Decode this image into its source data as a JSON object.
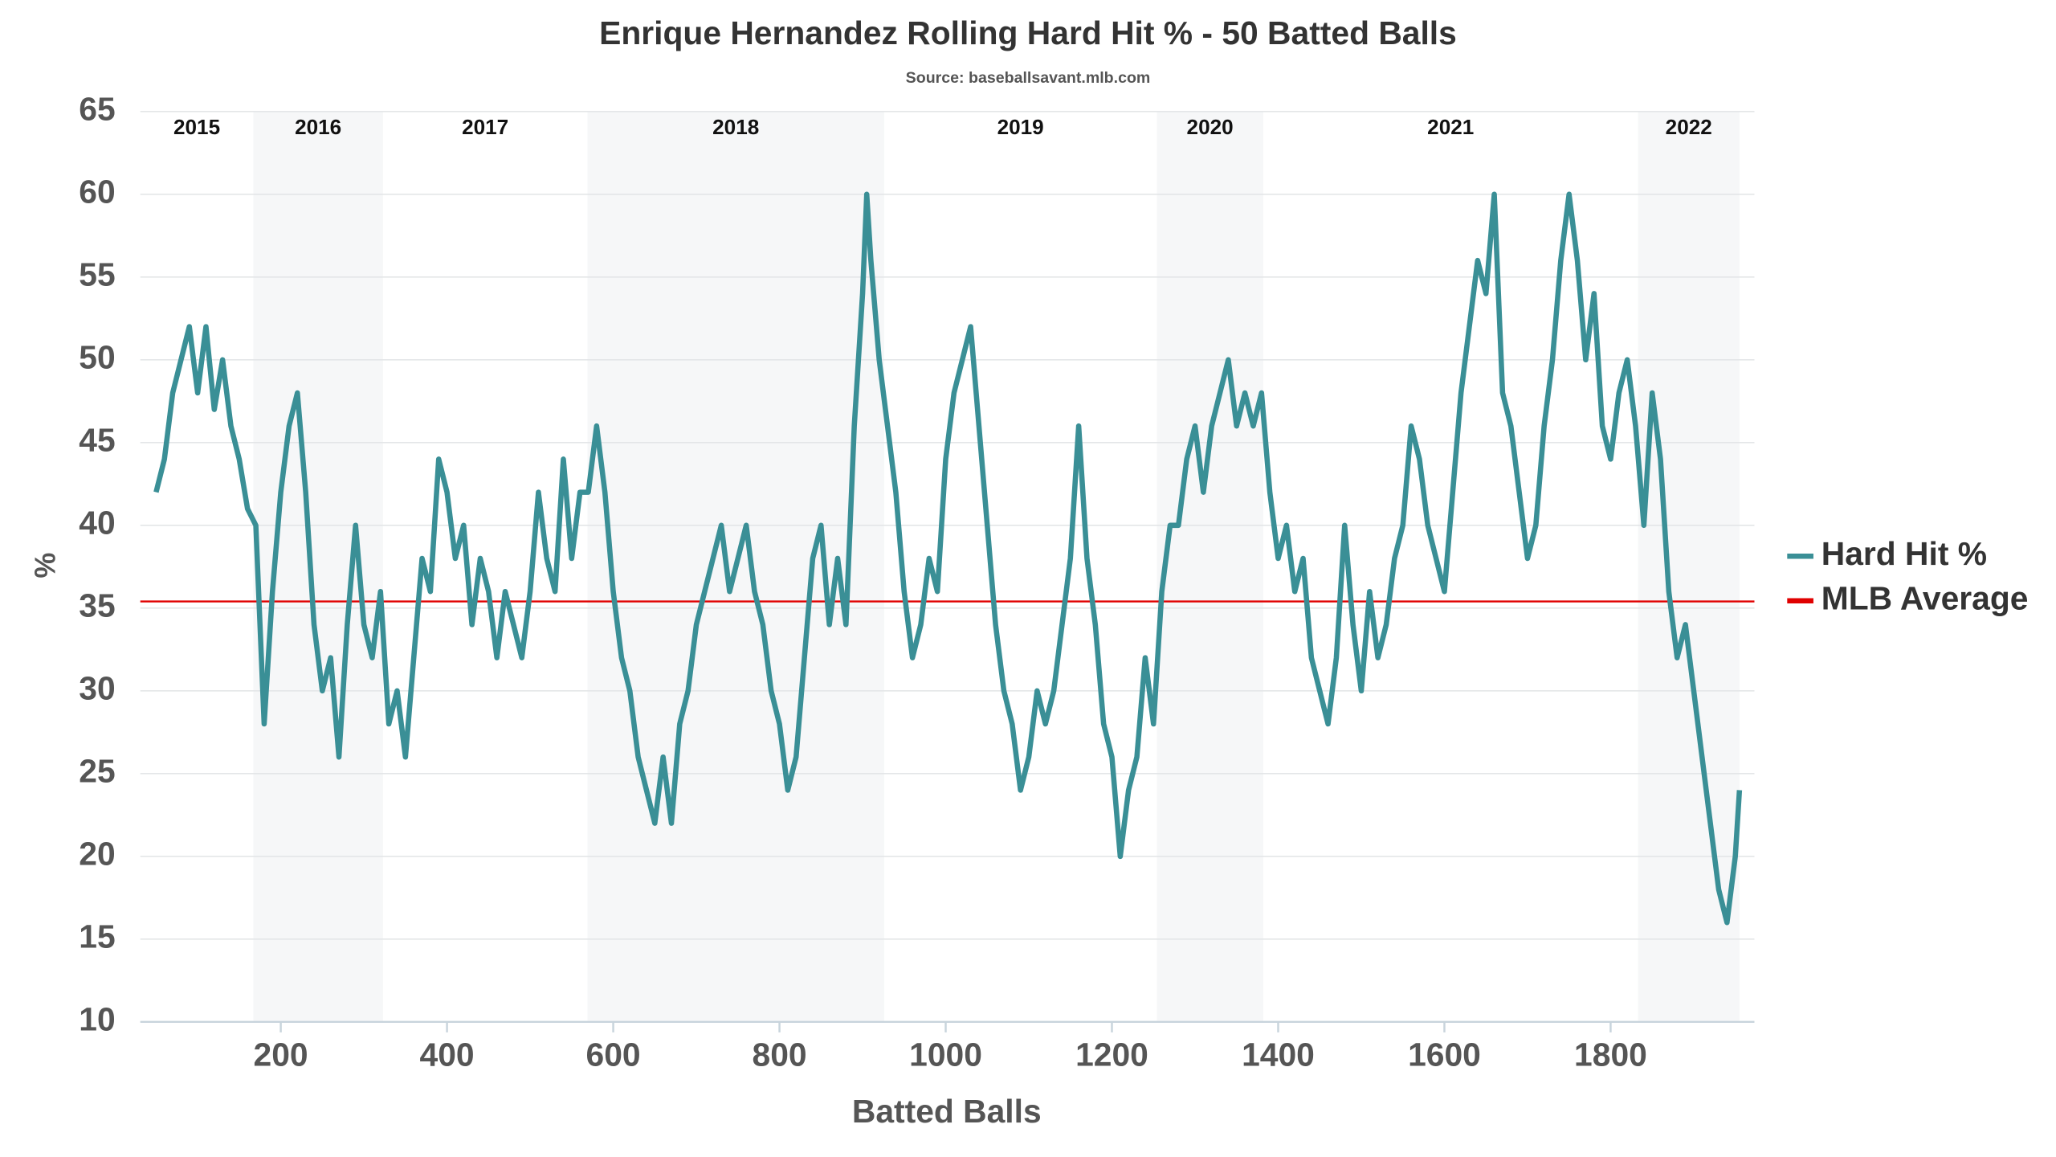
{
  "chart_data": {
    "type": "line",
    "title": "Enrique Hernandez Rolling Hard Hit % - 50 Batted Balls",
    "subtitle": "Source: baseballsavant.mlb.com",
    "x_label": "Batted Balls",
    "y_label": "%",
    "xlim": [
      31,
      1973
    ],
    "ylim": [
      10,
      65
    ],
    "xticks": [
      200,
      400,
      600,
      800,
      1000,
      1200,
      1400,
      1600,
      1800
    ],
    "yticks": [
      10,
      15,
      20,
      25,
      30,
      35,
      40,
      45,
      50,
      55,
      60,
      65
    ],
    "grid": true,
    "legend": "right",
    "seasons": [
      {
        "label": "2015",
        "start": 31,
        "end": 167,
        "shaded": false
      },
      {
        "label": "2016",
        "start": 167,
        "end": 323,
        "shaded": true
      },
      {
        "label": "2017",
        "start": 323,
        "end": 569,
        "shaded": false
      },
      {
        "label": "2018",
        "start": 569,
        "end": 926,
        "shaded": true
      },
      {
        "label": "2019",
        "start": 926,
        "end": 1254,
        "shaded": false
      },
      {
        "label": "2020",
        "start": 1254,
        "end": 1382,
        "shaded": true
      },
      {
        "label": "2021",
        "start": 1382,
        "end": 1833,
        "shaded": false
      },
      {
        "label": "2022",
        "start": 1833,
        "end": 1955,
        "shaded": true
      }
    ],
    "x": [
      50,
      60,
      70,
      80,
      90,
      100,
      110,
      120,
      130,
      140,
      150,
      160,
      170,
      175,
      180,
      190,
      200,
      210,
      220,
      230,
      240,
      250,
      260,
      270,
      280,
      290,
      300,
      310,
      320,
      330,
      340,
      350,
      360,
      370,
      380,
      390,
      400,
      410,
      420,
      430,
      440,
      450,
      460,
      470,
      480,
      490,
      500,
      510,
      520,
      530,
      540,
      550,
      560,
      570,
      580,
      590,
      600,
      610,
      620,
      630,
      640,
      650,
      660,
      670,
      680,
      690,
      700,
      710,
      720,
      730,
      740,
      750,
      760,
      770,
      780,
      790,
      800,
      810,
      820,
      830,
      840,
      850,
      860,
      870,
      880,
      890,
      900,
      905,
      910,
      920,
      930,
      940,
      950,
      960,
      970,
      980,
      990,
      1000,
      1010,
      1020,
      1030,
      1040,
      1050,
      1060,
      1070,
      1080,
      1090,
      1100,
      1110,
      1120,
      1130,
      1140,
      1150,
      1160,
      1170,
      1180,
      1190,
      1200,
      1210,
      1220,
      1230,
      1240,
      1250,
      1260,
      1270,
      1280,
      1290,
      1300,
      1310,
      1320,
      1330,
      1340,
      1350,
      1360,
      1370,
      1380,
      1390,
      1400,
      1410,
      1420,
      1430,
      1440,
      1450,
      1460,
      1470,
      1480,
      1490,
      1500,
      1510,
      1520,
      1530,
      1540,
      1550,
      1560,
      1570,
      1580,
      1590,
      1600,
      1610,
      1620,
      1630,
      1640,
      1650,
      1660,
      1670,
      1680,
      1690,
      1700,
      1710,
      1720,
      1730,
      1740,
      1750,
      1760,
      1770,
      1780,
      1790,
      1800,
      1810,
      1820,
      1830,
      1840,
      1850,
      1860,
      1870,
      1880,
      1890,
      1900,
      1910,
      1920,
      1930,
      1940,
      1950,
      1955
    ],
    "series": [
      {
        "name": "Hard Hit %",
        "color": "#3a8f96",
        "values": [
          42,
          44,
          48,
          50,
          52,
          48,
          52,
          47,
          50,
          46,
          44,
          41,
          40,
          34,
          28,
          36,
          42,
          46,
          48,
          42,
          34,
          30,
          32,
          26,
          34,
          40,
          34,
          32,
          36,
          28,
          30,
          26,
          32,
          38,
          36,
          44,
          42,
          38,
          40,
          34,
          38,
          36,
          32,
          36,
          34,
          32,
          36,
          42,
          38,
          36,
          44,
          38,
          42,
          42,
          46,
          42,
          36,
          32,
          30,
          26,
          24,
          22,
          26,
          22,
          28,
          30,
          34,
          36,
          38,
          40,
          36,
          38,
          40,
          36,
          34,
          30,
          28,
          24,
          26,
          32,
          38,
          40,
          34,
          38,
          34,
          46,
          54,
          60,
          56,
          50,
          46,
          42,
          36,
          32,
          34,
          38,
          36,
          44,
          48,
          50,
          52,
          46,
          40,
          34,
          30,
          28,
          24,
          26,
          30,
          28,
          30,
          34,
          38,
          46,
          38,
          34,
          28,
          26,
          20,
          24,
          26,
          32,
          28,
          36,
          40,
          40,
          44,
          46,
          42,
          46,
          48,
          50,
          46,
          48,
          46,
          48,
          42,
          38,
          40,
          36,
          38,
          32,
          30,
          28,
          32,
          40,
          34,
          30,
          36,
          32,
          34,
          38,
          40,
          46,
          44,
          40,
          38,
          36,
          42,
          48,
          52,
          56,
          54,
          60,
          48,
          46,
          42,
          38,
          40,
          46,
          50,
          56,
          60,
          56,
          50,
          54,
          46,
          44,
          48,
          50,
          46,
          40,
          48,
          44,
          36,
          32,
          34,
          30,
          26,
          22,
          18,
          16,
          20,
          24
        ]
      }
    ],
    "reference_line": {
      "name": "MLB Average",
      "value": 35.4,
      "color": "#e00000"
    }
  }
}
